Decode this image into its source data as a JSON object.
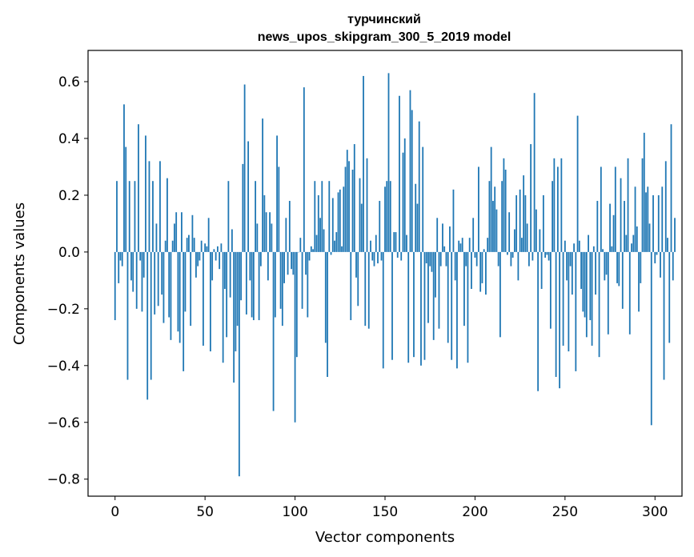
{
  "chart_data": {
    "type": "bar",
    "title": "турчинский",
    "subtitle": "news_upos_skipgram_300_5_2019 model",
    "xlabel": "Vector components",
    "ylabel": "Components values",
    "xlim": [
      -15,
      315
    ],
    "ylim": [
      -0.86,
      0.71
    ],
    "xticks": [
      0,
      50,
      100,
      150,
      200,
      250,
      300
    ],
    "yticks": [
      -0.8,
      -0.6,
      -0.4,
      -0.2,
      0.0,
      0.2,
      0.4,
      0.6
    ],
    "ytick_labels": [
      "−0.8",
      "−0.6",
      "−0.4",
      "−0.2",
      "0.0",
      "0.2",
      "0.4",
      "0.6"
    ],
    "bar_color": "#1f77b4",
    "grid": false,
    "values": [
      -0.24,
      0.25,
      -0.11,
      -0.03,
      -0.05,
      0.52,
      0.37,
      -0.45,
      0.25,
      -0.1,
      -0.14,
      0.25,
      -0.2,
      0.45,
      -0.03,
      -0.21,
      -0.09,
      0.41,
      -0.52,
      0.32,
      -0.45,
      0.25,
      -0.22,
      0.1,
      -0.19,
      0.32,
      -0.15,
      -0.25,
      0.04,
      0.26,
      -0.23,
      -0.31,
      0.04,
      0.1,
      0.14,
      -0.28,
      -0.32,
      0.14,
      -0.42,
      -0.21,
      0.05,
      0.06,
      -0.26,
      0.13,
      0.05,
      -0.09,
      -0.05,
      -0.03,
      0.04,
      -0.33,
      0.03,
      0.02,
      0.12,
      -0.35,
      -0.1,
      0.01,
      -0.03,
      0.02,
      -0.06,
      0.03,
      -0.39,
      -0.13,
      -0.3,
      0.25,
      -0.16,
      0.08,
      -0.46,
      -0.35,
      -0.26,
      -0.79,
      -0.17,
      0.31,
      0.59,
      -0.22,
      0.39,
      -0.1,
      -0.23,
      -0.24,
      0.25,
      0.1,
      -0.24,
      -0.05,
      0.47,
      0.2,
      0.14,
      -0.1,
      0.14,
      0.1,
      -0.56,
      -0.23,
      0.41,
      0.3,
      -0.2,
      -0.26,
      -0.11,
      0.12,
      -0.08,
      0.18,
      -0.06,
      -0.08,
      -0.6,
      -0.37,
      0.0,
      0.05,
      -0.2,
      0.58,
      -0.08,
      -0.23,
      -0.03,
      0.02,
      0.01,
      0.25,
      0.06,
      0.2,
      0.12,
      0.25,
      0.08,
      -0.32,
      -0.44,
      0.25,
      -0.01,
      0.19,
      0.04,
      0.07,
      0.21,
      0.22,
      0.02,
      0.23,
      0.3,
      0.36,
      0.32,
      -0.24,
      0.29,
      0.38,
      -0.09,
      -0.19,
      0.26,
      0.17,
      0.62,
      -0.26,
      0.33,
      -0.27,
      0.04,
      -0.03,
      -0.05,
      0.06,
      -0.04,
      0.18,
      -0.03,
      -0.41,
      0.23,
      0.25,
      0.63,
      0.25,
      -0.38,
      0.07,
      0.07,
      -0.02,
      0.55,
      -0.03,
      0.35,
      0.4,
      0.06,
      -0.39,
      0.57,
      0.5,
      -0.37,
      0.24,
      0.17,
      0.46,
      -0.4,
      0.37,
      -0.38,
      -0.04,
      -0.25,
      -0.05,
      -0.07,
      -0.31,
      -0.16,
      0.12,
      -0.27,
      -0.05,
      0.1,
      0.02,
      -0.05,
      -0.32,
      0.09,
      -0.38,
      0.22,
      -0.1,
      -0.41,
      0.04,
      0.03,
      0.05,
      -0.26,
      -0.05,
      -0.39,
      0.05,
      -0.13,
      0.12,
      -0.02,
      -0.05,
      0.3,
      -0.14,
      -0.11,
      0.01,
      -0.15,
      0.05,
      0.25,
      0.37,
      0.18,
      0.23,
      0.15,
      -0.05,
      -0.3,
      0.25,
      0.33,
      0.29,
      -0.01,
      0.14,
      -0.05,
      -0.02,
      0.08,
      0.2,
      -0.1,
      0.22,
      0.05,
      0.27,
      0.2,
      0.1,
      -0.05,
      0.38,
      -0.03,
      0.56,
      0.15,
      -0.49,
      0.08,
      -0.13,
      0.2,
      -0.02,
      -0.01,
      -0.03,
      -0.27,
      0.25,
      0.33,
      -0.44,
      0.3,
      -0.48,
      0.33,
      -0.33,
      0.04,
      -0.1,
      -0.35,
      -0.05,
      -0.15,
      0.03,
      -0.42,
      0.48,
      0.04,
      -0.13,
      -0.21,
      -0.23,
      -0.3,
      0.06,
      -0.24,
      -0.33,
      0.02,
      -0.15,
      0.18,
      -0.37,
      0.3,
      0.01,
      -0.1,
      -0.08,
      -0.29,
      0.17,
      0.02,
      0.13,
      0.3,
      -0.11,
      -0.12,
      0.26,
      -0.2,
      0.18,
      0.06,
      0.33,
      -0.29,
      0.03,
      0.06,
      0.23,
      0.09,
      -0.21,
      -0.11,
      0.33,
      0.42,
      0.21,
      0.23,
      0.1,
      -0.61,
      0.2,
      -0.04,
      -0.01,
      0.2,
      -0.09,
      0.23,
      -0.45,
      0.32,
      0.05,
      -0.32,
      0.45,
      -0.1,
      0.12
    ]
  }
}
